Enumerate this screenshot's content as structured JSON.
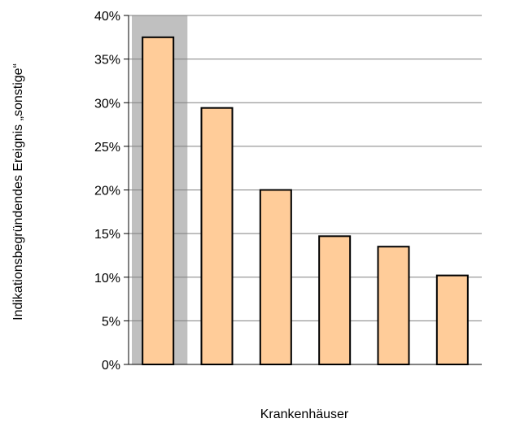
{
  "chart_data": {
    "type": "bar",
    "title": "",
    "xlabel": "Krankenhäuser",
    "ylabel": "Indikationsbegründendes Ereignis „sonstige“",
    "ylim": [
      0,
      40
    ],
    "yticks": [
      "0%",
      "5%",
      "10%",
      "15%",
      "20%",
      "25%",
      "30%",
      "35%",
      "40%"
    ],
    "grid": true,
    "categories": [
      "",
      "",
      "",
      "",
      "",
      ""
    ],
    "values": [
      37.5,
      29.4,
      20.0,
      14.7,
      13.5,
      10.2
    ],
    "highlighted_index": 0,
    "colors": {
      "bar_fill": "#FFCC99",
      "bar_stroke": "#000000",
      "highlight_band": "#C0C0C0",
      "grid": "#808080",
      "axis": "#000000"
    }
  }
}
